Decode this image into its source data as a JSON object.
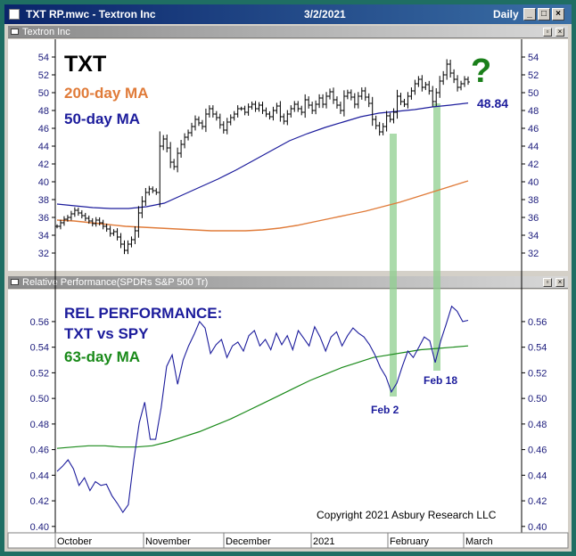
{
  "window": {
    "title": "TXT RP.mwc - Textron Inc",
    "date": "3/2/2021",
    "period": "Daily"
  },
  "panes": {
    "price_title": "Textron Inc",
    "rel_title": "Relative Performance(SPDRs S&P 500 Tr)"
  },
  "labels": {
    "ticker": "TXT",
    "ma200": "200-day MA",
    "ma50": "50-day MA",
    "question": "?",
    "last_value": "48.84",
    "rel_line1": "REL PERFORMANCE:",
    "rel_line2": "TXT vs SPY",
    "ma63": "63-day MA",
    "feb2": "Feb 2",
    "feb18": "Feb 18",
    "copyright": "Copyright 2021 Asbury Research LLC"
  },
  "colors": {
    "ticker": "#000000",
    "ma200": "#e07b39",
    "ma50": "#1c1c9c",
    "question": "#1a7f1a",
    "rel_line": "#1c1c9c",
    "ma63": "#1a8a1a",
    "highlight": "#8fcf8f",
    "price_bars": "#000000"
  },
  "chart_data": [
    {
      "type": "ohlc",
      "name": "price",
      "x_labels": [
        "October",
        "November",
        "December",
        "2021",
        "February",
        "March"
      ],
      "yticks": [
        32,
        34,
        36,
        38,
        40,
        42,
        44,
        46,
        48,
        50,
        52,
        54
      ],
      "ylim": [
        30,
        56
      ],
      "series": [
        {
          "name": "TXT",
          "values": [
            35.0,
            35.4,
            35.8,
            36.0,
            36.4,
            36.8,
            36.5,
            36.2,
            35.9,
            35.6,
            35.3,
            35.7,
            35.4,
            35.0,
            34.7,
            34.2,
            34.4,
            33.8,
            33.0,
            32.3,
            33.0,
            33.5,
            34.5,
            36.5,
            37.8,
            38.8,
            39.2,
            39.0,
            38.8,
            44.0,
            44.8,
            43.8,
            42.2,
            41.7,
            43.2,
            44.2,
            45.0,
            45.5,
            46.2,
            47.0,
            46.6,
            46.2,
            47.6,
            48.2,
            47.6,
            47.2,
            46.4,
            45.8,
            46.7,
            47.2,
            47.6,
            48.2,
            48.2,
            47.8,
            48.4,
            48.7,
            48.2,
            48.6,
            48.0,
            47.6,
            47.3,
            48.0,
            48.5,
            47.3,
            46.8,
            47.6,
            48.2,
            48.7,
            48.2,
            47.8,
            49.2,
            48.6,
            48.0,
            48.7,
            49.4,
            48.7,
            49.6,
            50.1,
            49.2,
            48.6,
            48.0,
            49.6,
            50.0,
            49.5,
            48.7,
            49.6,
            50.2,
            49.5,
            48.8,
            47.0,
            46.3,
            45.6,
            46.2,
            47.4,
            47.0,
            47.8,
            49.6,
            49.0,
            48.7,
            49.6,
            50.2,
            51.0,
            51.5,
            50.6,
            50.9,
            50.2,
            49.0,
            50.0,
            51.3,
            52.0,
            53.2,
            52.2,
            51.5,
            50.6,
            51.0,
            51.5,
            51.2
          ]
        },
        {
          "name": "50-day MA",
          "values": [
            37.5,
            37.3,
            37.1,
            37.0,
            37.0,
            37.2,
            37.6,
            38.5,
            39.4,
            40.3,
            41.3,
            42.4,
            43.5,
            44.6,
            45.4,
            46.1,
            46.7,
            47.3,
            47.7,
            47.9,
            48.1,
            48.4,
            48.6,
            48.84
          ]
        },
        {
          "name": "200-day MA",
          "values": [
            35.7,
            35.6,
            35.4,
            35.2,
            35.0,
            34.9,
            34.8,
            34.7,
            34.6,
            34.5,
            34.5,
            34.5,
            34.6,
            34.8,
            35.1,
            35.5,
            35.9,
            36.3,
            36.7,
            37.2,
            37.7,
            38.3,
            38.9,
            39.5,
            40.1
          ]
        }
      ]
    },
    {
      "type": "line",
      "name": "relative_performance",
      "x_labels": [
        "October",
        "November",
        "December",
        "2021",
        "February",
        "March"
      ],
      "yticks": [
        0.4,
        0.42,
        0.44,
        0.46,
        0.48,
        0.5,
        0.52,
        0.54,
        0.56
      ],
      "ylim": [
        0.395,
        0.585
      ],
      "series": [
        {
          "name": "REL PERFORMANCE",
          "values": [
            0.443,
            0.447,
            0.452,
            0.445,
            0.432,
            0.438,
            0.428,
            0.435,
            0.432,
            0.433,
            0.424,
            0.418,
            0.411,
            0.417,
            0.452,
            0.481,
            0.497,
            0.468,
            0.468,
            0.493,
            0.525,
            0.534,
            0.511,
            0.53,
            0.541,
            0.55,
            0.56,
            0.555,
            0.535,
            0.542,
            0.546,
            0.532,
            0.541,
            0.544,
            0.537,
            0.549,
            0.553,
            0.541,
            0.546,
            0.538,
            0.551,
            0.542,
            0.549,
            0.538,
            0.553,
            0.547,
            0.541,
            0.556,
            0.548,
            0.537,
            0.548,
            0.552,
            0.541,
            0.549,
            0.555,
            0.551,
            0.548,
            0.542,
            0.534,
            0.524,
            0.517,
            0.505,
            0.512,
            0.525,
            0.537,
            0.532,
            0.54,
            0.548,
            0.545,
            0.528,
            0.545,
            0.558,
            0.572,
            0.568,
            0.56,
            0.561
          ]
        },
        {
          "name": "63-day MA",
          "values": [
            0.461,
            0.462,
            0.463,
            0.463,
            0.462,
            0.462,
            0.463,
            0.466,
            0.47,
            0.474,
            0.479,
            0.484,
            0.49,
            0.496,
            0.502,
            0.508,
            0.514,
            0.519,
            0.524,
            0.528,
            0.532,
            0.534,
            0.536,
            0.538,
            0.539,
            0.54,
            0.541
          ]
        }
      ]
    }
  ]
}
